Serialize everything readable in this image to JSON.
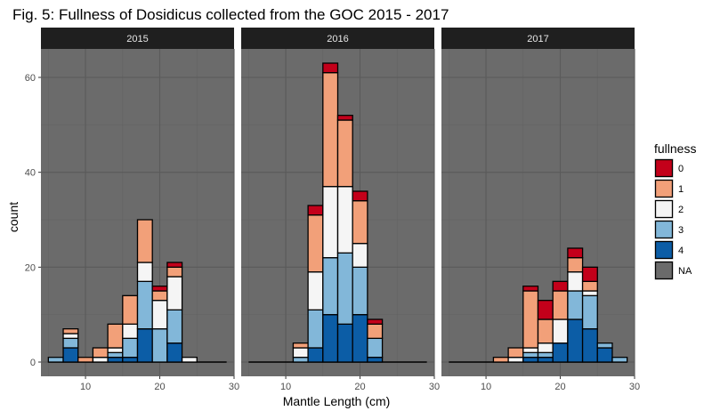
{
  "chart_data": {
    "type": "bar",
    "stacked": true,
    "title": "Fig. 5: Fullness of Dosidicus collected from the GOC 2015 - 2017",
    "xlabel": "Mantle Length (cm)",
    "ylabel": "count",
    "xlim": [
      4,
      30
    ],
    "ylim": [
      -3,
      66
    ],
    "x_ticks": [
      10,
      20,
      30
    ],
    "y_ticks": [
      0,
      20,
      40,
      60
    ],
    "bin_width": 2,
    "legend": {
      "title": "fullness",
      "position": "right",
      "items": [
        {
          "label": "0",
          "color": "#C3001A"
        },
        {
          "label": "1",
          "color": "#F2A079"
        },
        {
          "label": "2",
          "color": "#F5F5F5"
        },
        {
          "label": "3",
          "color": "#82B7D9"
        },
        {
          "label": "4",
          "color": "#0C5DA6"
        },
        {
          "label": "NA",
          "color": "#6B6B6B"
        }
      ]
    },
    "series_order": [
      "4",
      "3",
      "2",
      "1",
      "0"
    ],
    "panels": [
      {
        "label": "2015",
        "bins": [
          {
            "x0": 5,
            "counts": {
              "4": 0,
              "3": 1,
              "2": 0,
              "1": 0,
              "0": 0
            }
          },
          {
            "x0": 7,
            "counts": {
              "4": 3,
              "3": 2,
              "2": 1,
              "1": 1,
              "0": 0
            }
          },
          {
            "x0": 9,
            "counts": {
              "4": 0,
              "3": 0,
              "2": 0,
              "1": 1,
              "0": 0
            }
          },
          {
            "x0": 11,
            "counts": {
              "4": 0,
              "3": 0,
              "2": 1,
              "1": 2,
              "0": 0
            }
          },
          {
            "x0": 13,
            "counts": {
              "4": 1,
              "3": 1,
              "2": 1,
              "1": 5,
              "0": 0
            }
          },
          {
            "x0": 15,
            "counts": {
              "4": 1,
              "3": 4,
              "2": 3,
              "1": 6,
              "0": 0
            }
          },
          {
            "x0": 17,
            "counts": {
              "4": 7,
              "3": 10,
              "2": 4,
              "1": 9,
              "0": 0
            }
          },
          {
            "x0": 19,
            "counts": {
              "4": 0,
              "3": 7,
              "2": 6,
              "1": 2,
              "0": 1
            }
          },
          {
            "x0": 21,
            "counts": {
              "4": 4,
              "3": 7,
              "2": 7,
              "1": 2,
              "0": 1
            }
          },
          {
            "x0": 23,
            "counts": {
              "4": 0,
              "3": 0,
              "2": 1,
              "1": 0,
              "0": 0
            }
          },
          {
            "x0": 25,
            "counts": {
              "4": 0,
              "3": 0,
              "2": 0,
              "1": 0,
              "0": 0
            }
          },
          {
            "x0": 27,
            "counts": {
              "4": 0,
              "3": 0,
              "2": 0,
              "1": 0,
              "0": 0
            }
          }
        ]
      },
      {
        "label": "2016",
        "bins": [
          {
            "x0": 5,
            "counts": {
              "4": 0,
              "3": 0,
              "2": 0,
              "1": 0,
              "0": 0
            }
          },
          {
            "x0": 7,
            "counts": {
              "4": 0,
              "3": 0,
              "2": 0,
              "1": 0,
              "0": 0
            }
          },
          {
            "x0": 9,
            "counts": {
              "4": 0,
              "3": 0,
              "2": 0,
              "1": 0,
              "0": 0
            }
          },
          {
            "x0": 11,
            "counts": {
              "4": 0,
              "3": 1,
              "2": 2,
              "1": 1,
              "0": 0
            }
          },
          {
            "x0": 13,
            "counts": {
              "4": 3,
              "3": 8,
              "2": 8,
              "1": 12,
              "0": 2
            }
          },
          {
            "x0": 15,
            "counts": {
              "4": 10,
              "3": 12,
              "2": 15,
              "1": 24,
              "0": 2
            }
          },
          {
            "x0": 17,
            "counts": {
              "4": 8,
              "3": 15,
              "2": 14,
              "1": 14,
              "0": 1
            }
          },
          {
            "x0": 19,
            "counts": {
              "4": 10,
              "3": 10,
              "2": 5,
              "1": 9,
              "0": 2
            }
          },
          {
            "x0": 21,
            "counts": {
              "4": 1,
              "3": 4,
              "2": 0,
              "1": 3,
              "0": 1
            }
          },
          {
            "x0": 23,
            "counts": {
              "4": 0,
              "3": 0,
              "2": 0,
              "1": 0,
              "0": 0
            }
          },
          {
            "x0": 25,
            "counts": {
              "4": 0,
              "3": 0,
              "2": 0,
              "1": 0,
              "0": 0
            }
          },
          {
            "x0": 27,
            "counts": {
              "4": 0,
              "3": 0,
              "2": 0,
              "1": 0,
              "0": 0
            }
          }
        ]
      },
      {
        "label": "2017",
        "bins": [
          {
            "x0": 5,
            "counts": {
              "4": 0,
              "3": 0,
              "2": 0,
              "1": 0,
              "0": 0
            }
          },
          {
            "x0": 7,
            "counts": {
              "4": 0,
              "3": 0,
              "2": 0,
              "1": 0,
              "0": 0
            }
          },
          {
            "x0": 9,
            "counts": {
              "4": 0,
              "3": 0,
              "2": 0,
              "1": 0,
              "0": 0
            }
          },
          {
            "x0": 11,
            "counts": {
              "4": 0,
              "3": 0,
              "2": 0,
              "1": 1,
              "0": 0
            }
          },
          {
            "x0": 13,
            "counts": {
              "4": 0,
              "3": 0,
              "2": 1,
              "1": 2,
              "0": 0
            }
          },
          {
            "x0": 15,
            "counts": {
              "4": 1,
              "3": 1,
              "2": 1,
              "1": 12,
              "0": 1
            }
          },
          {
            "x0": 17,
            "counts": {
              "4": 1,
              "3": 1,
              "2": 2,
              "1": 5,
              "0": 4
            }
          },
          {
            "x0": 19,
            "counts": {
              "4": 4,
              "3": 0,
              "2": 5,
              "1": 6,
              "0": 2
            }
          },
          {
            "x0": 21,
            "counts": {
              "4": 9,
              "3": 6,
              "2": 4,
              "1": 3,
              "0": 2
            }
          },
          {
            "x0": 23,
            "counts": {
              "4": 7,
              "3": 7,
              "2": 1,
              "1": 2,
              "0": 3
            }
          },
          {
            "x0": 25,
            "counts": {
              "4": 3,
              "3": 1,
              "2": 0,
              "1": 0,
              "0": 0
            }
          },
          {
            "x0": 27,
            "counts": {
              "4": 0,
              "3": 1,
              "2": 0,
              "1": 0,
              "0": 0
            }
          }
        ]
      }
    ]
  }
}
